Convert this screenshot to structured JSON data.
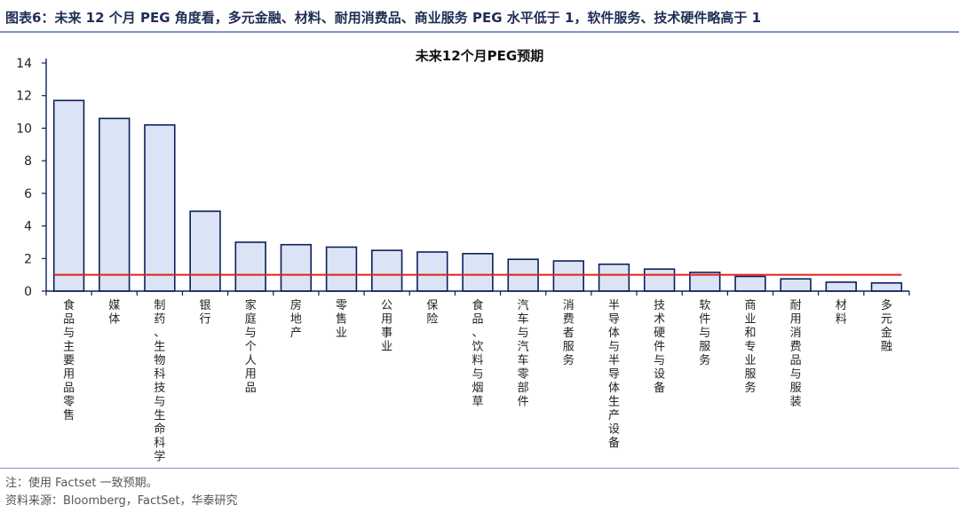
{
  "header": {
    "figure_label": "图表6：",
    "figure_title": "未来 12 个月 PEG 角度看，多元金融、材料、耐用消费品、商业服务 PEG 水平低于 1，软件服务、技术硬件略高于 1"
  },
  "chart_data": {
    "type": "bar",
    "title": "未来12个月PEG预期",
    "xlabel": "",
    "ylabel": "",
    "ylim": [
      0,
      14
    ],
    "yticks": [
      0,
      2,
      4,
      6,
      8,
      10,
      12,
      14
    ],
    "grid": false,
    "categories": [
      "食品与主要用品零售",
      "媒体",
      "制药、生物科技与生命科学",
      "银行",
      "家庭与个人用品",
      "房地产",
      "零售业",
      "公用事业",
      "保险",
      "食品、饮料与烟草",
      "汽车与汽车零部件",
      "消费者服务",
      "半导体与半导体生产设备",
      "技术硬件与设备",
      "软件与服务",
      "商业和专业服务",
      "耐用消费品与服装",
      "材料",
      "多元金融"
    ],
    "series": [
      {
        "values": [
          11.7,
          10.6,
          10.2,
          4.9,
          3.0,
          2.85,
          2.7,
          2.5,
          2.4,
          2.3,
          1.95,
          1.85,
          1.65,
          1.35,
          1.15,
          0.9,
          0.75,
          0.55,
          0.5
        ],
        "color": "#dbe4f4",
        "edge_color": "#0d1f5c"
      }
    ],
    "reference_line": {
      "value": 1,
      "color": "#e0211b"
    }
  },
  "footer": {
    "note": "注：使用 Factset 一致预期。",
    "source": "资料来源：Bloomberg，FactSet，华泰研究"
  }
}
